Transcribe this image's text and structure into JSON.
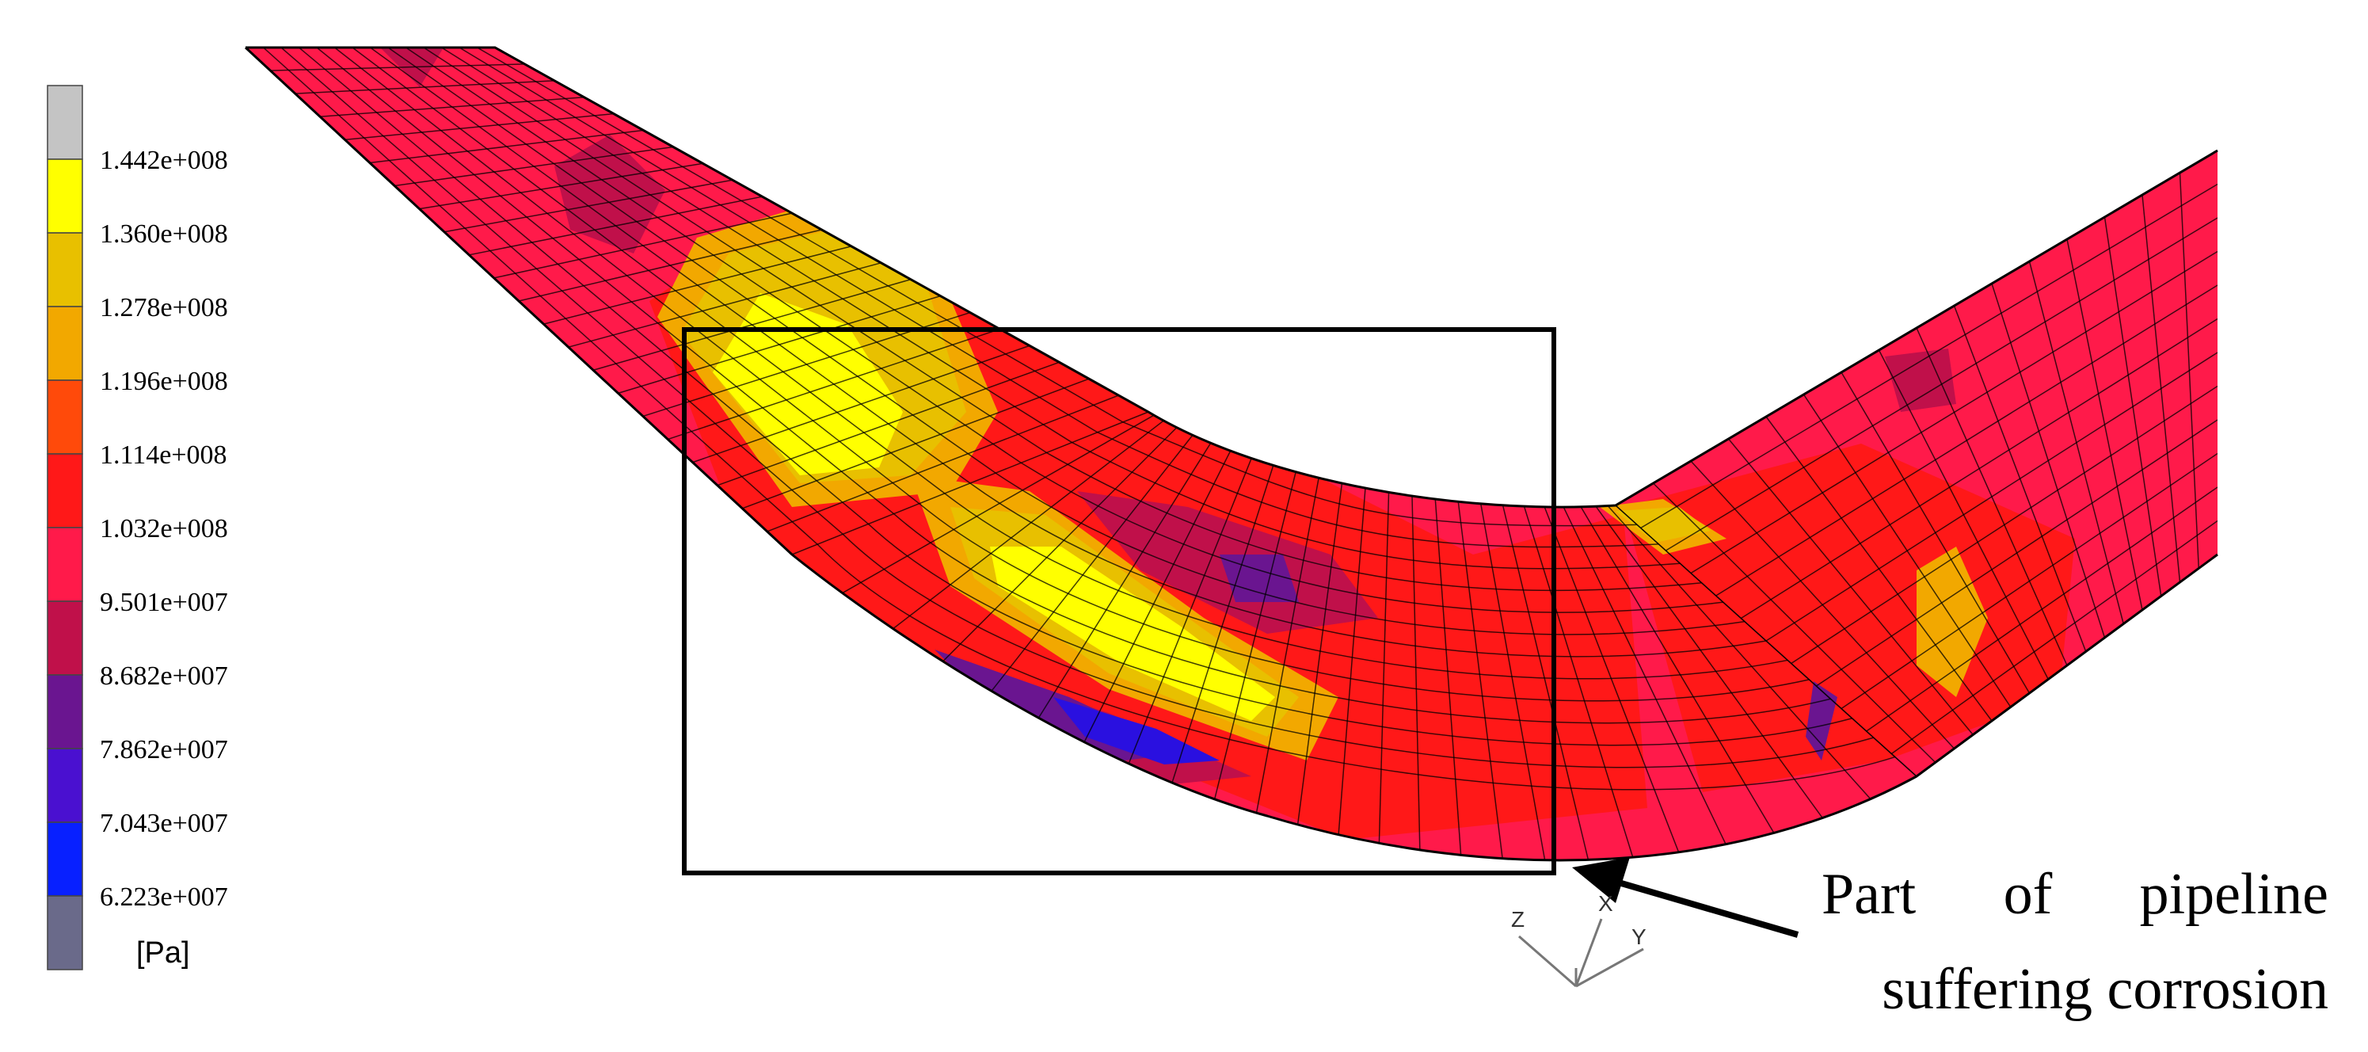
{
  "legend": {
    "unit": "[Pa]",
    "bands": [
      {
        "color": "#c4c4c4"
      },
      {
        "color": "#ffff00",
        "label": "1.442e+008"
      },
      {
        "color": "#e8c000",
        "label": "1.360e+008"
      },
      {
        "color": "#f2a800",
        "label": "1.278e+008"
      },
      {
        "color": "#ff4a0a",
        "label": "1.196e+008"
      },
      {
        "color": "#ff1818",
        "label": "1.114e+008"
      },
      {
        "color": "#ff1a4a",
        "label": "1.032e+008"
      },
      {
        "color": "#c0104a",
        "label": "9.501e+007"
      },
      {
        "color": "#6a1590",
        "label": "8.682e+007"
      },
      {
        "color": "#4a10d0",
        "label": "7.862e+007"
      },
      {
        "color": "#0820ff",
        "label": "7.043e+007"
      },
      {
        "color": "#6a6a8a",
        "label": "6.223e+007"
      }
    ]
  },
  "annotation": {
    "caption_line1": "Part   of   pipeline",
    "caption_line2": "suffering corrosion"
  },
  "axes": {
    "z": "Z",
    "x": "X",
    "y": "Y"
  },
  "colors": {
    "pipe_base": "#ff1a4a",
    "hot_yellow": "#ffff00",
    "hot_gold": "#e8c000",
    "hot_orange": "#f2a800",
    "red": "#ff1818",
    "dark_red": "#c0104a",
    "purple": "#6a1590",
    "blue": "#2a10e0"
  }
}
